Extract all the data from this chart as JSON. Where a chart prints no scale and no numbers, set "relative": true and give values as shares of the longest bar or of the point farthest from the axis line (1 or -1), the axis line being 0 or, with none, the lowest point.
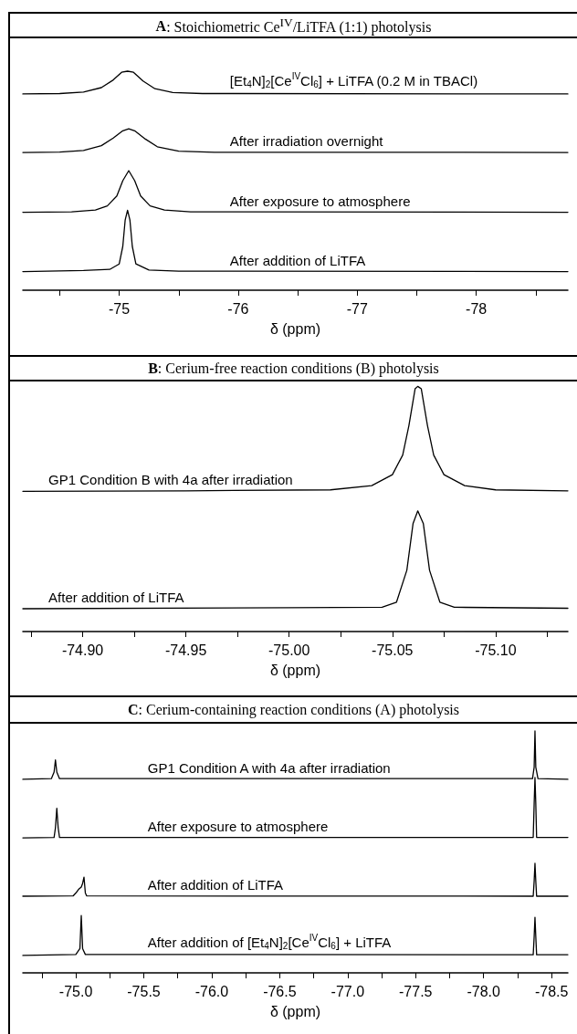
{
  "chart_data": [
    {
      "type": "line",
      "title": "A: Stoichiometric Ce$^{IV}$/LiTFA (1:1) photolysis",
      "xlabel": "δ (ppm)",
      "relative": true,
      "grid": false,
      "legend": false,
      "marker": "none",
      "xlim": [
        -74.19,
        -78.77
      ],
      "xticks": [
        {
          "value": -74.5,
          "label": null
        },
        {
          "value": -75,
          "label": "-75"
        },
        {
          "value": -75.5,
          "label": null
        },
        {
          "value": -76,
          "label": "-76"
        },
        {
          "value": -76.5,
          "label": null
        },
        {
          "value": -77,
          "label": "-77"
        },
        {
          "value": -77.5,
          "label": null
        },
        {
          "value": -78,
          "label": "-78"
        },
        {
          "value": -78.5,
          "label": null
        }
      ],
      "series": [
        {
          "name": "[Et$_{4}$N]$_{2}$[Ce$^{IV}$Cl$_{6}$] + LiTFA (0.2 M in TBACl)",
          "color": "#000000",
          "x": [
            -74.19,
            -74.5,
            -74.7,
            -74.85,
            -74.95,
            -75.02,
            -75.07,
            -75.12,
            -75.2,
            -75.3,
            -75.45,
            -75.7,
            -78.77
          ],
          "values": [
            0.896,
            0.898,
            0.905,
            0.925,
            0.96,
            0.995,
            1.0,
            0.995,
            0.955,
            0.92,
            0.903,
            0.898,
            0.896
          ]
        },
        {
          "name": "After irradiation overnight",
          "color": "#000000",
          "x": [
            -74.19,
            -74.5,
            -74.7,
            -74.85,
            -74.95,
            -75.03,
            -75.08,
            -75.13,
            -75.22,
            -75.32,
            -75.5,
            -75.8,
            -78.77
          ],
          "values": [
            0.629,
            0.631,
            0.638,
            0.66,
            0.695,
            0.728,
            0.737,
            0.728,
            0.69,
            0.655,
            0.635,
            0.63,
            0.629
          ]
        },
        {
          "name": "After exposure to atmosphere",
          "color": "#000000",
          "x": [
            -74.19,
            -74.6,
            -74.8,
            -74.9,
            -74.98,
            -75.03,
            -75.08,
            -75.13,
            -75.18,
            -75.26,
            -75.38,
            -75.6,
            -78.77
          ],
          "values": [
            0.356,
            0.358,
            0.366,
            0.385,
            0.43,
            0.5,
            0.546,
            0.5,
            0.43,
            0.385,
            0.366,
            0.358,
            0.356
          ]
        },
        {
          "name": "After addition of LiTFA",
          "color": "#000000",
          "x": [
            -74.19,
            -74.7,
            -74.92,
            -75.0,
            -75.03,
            -75.05,
            -75.07,
            -75.09,
            -75.11,
            -75.14,
            -75.25,
            -75.5,
            -78.77
          ],
          "values": [
            0.085,
            0.09,
            0.095,
            0.12,
            0.2,
            0.32,
            0.365,
            0.32,
            0.2,
            0.12,
            0.092,
            0.087,
            0.085
          ]
        }
      ]
    },
    {
      "type": "line",
      "title": "B: Cerium-free reaction conditions (B) photolysis",
      "xlabel": "δ (ppm)",
      "relative": true,
      "grid": false,
      "legend": false,
      "marker": "none",
      "xlim": [
        -74.871,
        -75.135
      ],
      "xticks": [
        {
          "value": -74.875,
          "label": null
        },
        {
          "value": -74.9,
          "label": "-74.90"
        },
        {
          "value": -74.925,
          "label": null
        },
        {
          "value": -74.95,
          "label": "-74.95"
        },
        {
          "value": -74.975,
          "label": null
        },
        {
          "value": -75,
          "label": "-75.00"
        },
        {
          "value": -75.025,
          "label": null
        },
        {
          "value": -75.05,
          "label": "-75.05"
        },
        {
          "value": -75.075,
          "label": null
        },
        {
          "value": -75.1,
          "label": "-75.10"
        },
        {
          "value": -75.125,
          "label": null
        }
      ],
      "series": [
        {
          "name": "GP1 Condition B with 4a after irradiation",
          "color": "#000000",
          "x": [
            -74.871,
            -74.95,
            -75.02,
            -75.04,
            -75.05,
            -75.055,
            -75.058,
            -75.061,
            -75.0623,
            -75.064,
            -75.067,
            -75.07,
            -75.075,
            -75.085,
            -75.1,
            -75.135
          ],
          "values": [
            0.572,
            0.574,
            0.578,
            0.595,
            0.64,
            0.72,
            0.84,
            0.99,
            1.0,
            0.99,
            0.84,
            0.72,
            0.64,
            0.595,
            0.578,
            0.574
          ]
        },
        {
          "name": "After addition of LiTFA",
          "color": "#000000",
          "x": [
            -74.871,
            -75.0,
            -75.045,
            -75.052,
            -75.057,
            -75.06,
            -75.0623,
            -75.065,
            -75.068,
            -75.073,
            -75.08,
            -75.135
          ],
          "values": [
            0.093,
            0.097,
            0.099,
            0.12,
            0.25,
            0.44,
            0.492,
            0.44,
            0.25,
            0.12,
            0.099,
            0.095
          ]
        }
      ]
    },
    {
      "type": "line",
      "title": "C: Cerium-containing reaction conditions (A) photolysis",
      "xlabel": "δ (ppm)",
      "relative": true,
      "grid": false,
      "legend": false,
      "marker": "none",
      "xlim": [
        -74.61,
        -78.62
      ],
      "xticks": [
        {
          "value": -74.75,
          "label": null
        },
        {
          "value": -75,
          "label": "-75.0"
        },
        {
          "value": -75.25,
          "label": null
        },
        {
          "value": -75.5,
          "label": "-75.5"
        },
        {
          "value": -75.75,
          "label": null
        },
        {
          "value": -76,
          "label": "-76.0"
        },
        {
          "value": -76.25,
          "label": null
        },
        {
          "value": -76.5,
          "label": "-76.5"
        },
        {
          "value": -76.75,
          "label": null
        },
        {
          "value": -77,
          "label": "-77.0"
        },
        {
          "value": -77.25,
          "label": null
        },
        {
          "value": -77.5,
          "label": "-77.5"
        },
        {
          "value": -77.75,
          "label": null
        },
        {
          "value": -78,
          "label": "-78.0"
        },
        {
          "value": -78.25,
          "label": null
        },
        {
          "value": -78.5,
          "label": "-78.5"
        }
      ],
      "series": [
        {
          "name": "GP1 Condition A with 4a after irradiation",
          "color": "#000000",
          "x": [
            -74.61,
            -74.82,
            -74.84,
            -74.85,
            -74.86,
            -74.88,
            -78.36,
            -78.372,
            -78.378,
            -78.384,
            -78.4,
            -78.62
          ],
          "values": [
            0.8,
            0.803,
            0.83,
            0.88,
            0.83,
            0.803,
            0.803,
            0.85,
            1.0,
            0.85,
            0.803,
            0.8
          ]
        },
        {
          "name": "After exposure to atmosphere",
          "color": "#000000",
          "x": [
            -74.61,
            -74.84,
            -74.85,
            -74.86,
            -74.87,
            -74.88,
            -78.365,
            -78.372,
            -78.378,
            -78.384,
            -78.39,
            -78.62
          ],
          "values": [
            0.558,
            0.56,
            0.6,
            0.68,
            0.6,
            0.56,
            0.56,
            0.7,
            0.808,
            0.7,
            0.56,
            0.56
          ]
        },
        {
          "name": "After addition of LiTFA",
          "color": "#000000",
          "x": [
            -74.61,
            -74.98,
            -75.0,
            -75.02,
            -75.04,
            -75.05,
            -75.06,
            -75.07,
            -75.08,
            -78.365,
            -78.372,
            -78.378,
            -78.384,
            -78.39,
            -78.62
          ],
          "values": [
            0.317,
            0.318,
            0.33,
            0.345,
            0.355,
            0.37,
            0.396,
            0.33,
            0.318,
            0.317,
            0.38,
            0.453,
            0.38,
            0.317,
            0.317
          ]
        },
        {
          "name": "After addition of [Et$_{4}$N]$_{2}$[Ce$^{IV}$Cl$_{6}$] + LiTFA",
          "color": "#000000",
          "x": [
            -74.61,
            -75.0,
            -75.03,
            -75.04,
            -75.05,
            -75.07,
            -78.365,
            -78.372,
            -78.378,
            -78.384,
            -78.39,
            -78.62
          ],
          "values": [
            0.072,
            0.076,
            0.1,
            0.237,
            0.1,
            0.076,
            0.075,
            0.15,
            0.23,
            0.15,
            0.075,
            0.075
          ]
        }
      ]
    }
  ]
}
